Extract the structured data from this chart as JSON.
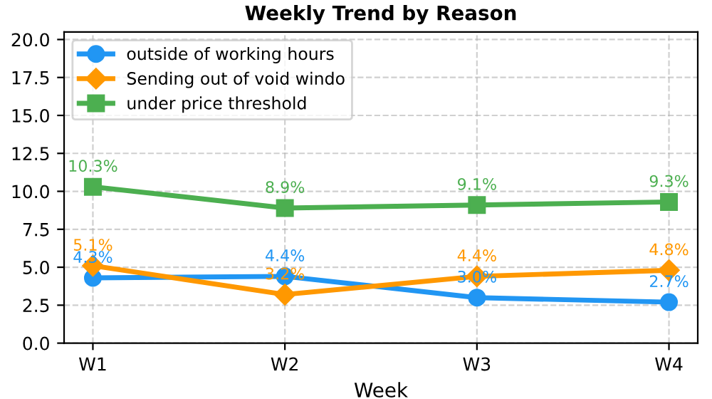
{
  "chart_data": {
    "type": "line",
    "title": "Weekly Trend by Reason",
    "xlabel": "Week",
    "categories": [
      "W1",
      "W2",
      "W3",
      "W4"
    ],
    "series": [
      {
        "name": "outside of working hours",
        "color": "#2196f3",
        "marker": "circle",
        "values": [
          4.3,
          4.4,
          3.0,
          2.7
        ],
        "value_labels": [
          "4.3%",
          "4.4%",
          "3.0%",
          "2.7%"
        ]
      },
      {
        "name": "Sending out of void windo",
        "color": "#ff9800",
        "marker": "diamond",
        "values": [
          5.1,
          3.2,
          4.4,
          4.8
        ],
        "value_labels": [
          "5.1%",
          "3.2%",
          "4.4%",
          "4.8%"
        ]
      },
      {
        "name": "under price threshold",
        "color": "#4caf50",
        "marker": "square",
        "values": [
          10.3,
          8.9,
          9.1,
          9.3
        ],
        "value_labels": [
          "10.3%",
          "8.9%",
          "9.1%",
          "9.3%"
        ]
      }
    ],
    "ylim": [
      0,
      20.5
    ],
    "yticks": [
      {
        "value": 0,
        "label": "0.0"
      },
      2.5,
      {
        "value": 5,
        "label": "5.0"
      },
      7.5,
      {
        "value": 10,
        "label": "10.0"
      },
      12.5,
      {
        "value": 15,
        "label": "15.0"
      },
      17.5,
      {
        "value": 20,
        "label": "20.0"
      }
    ],
    "grid": true,
    "legend": "top left"
  }
}
